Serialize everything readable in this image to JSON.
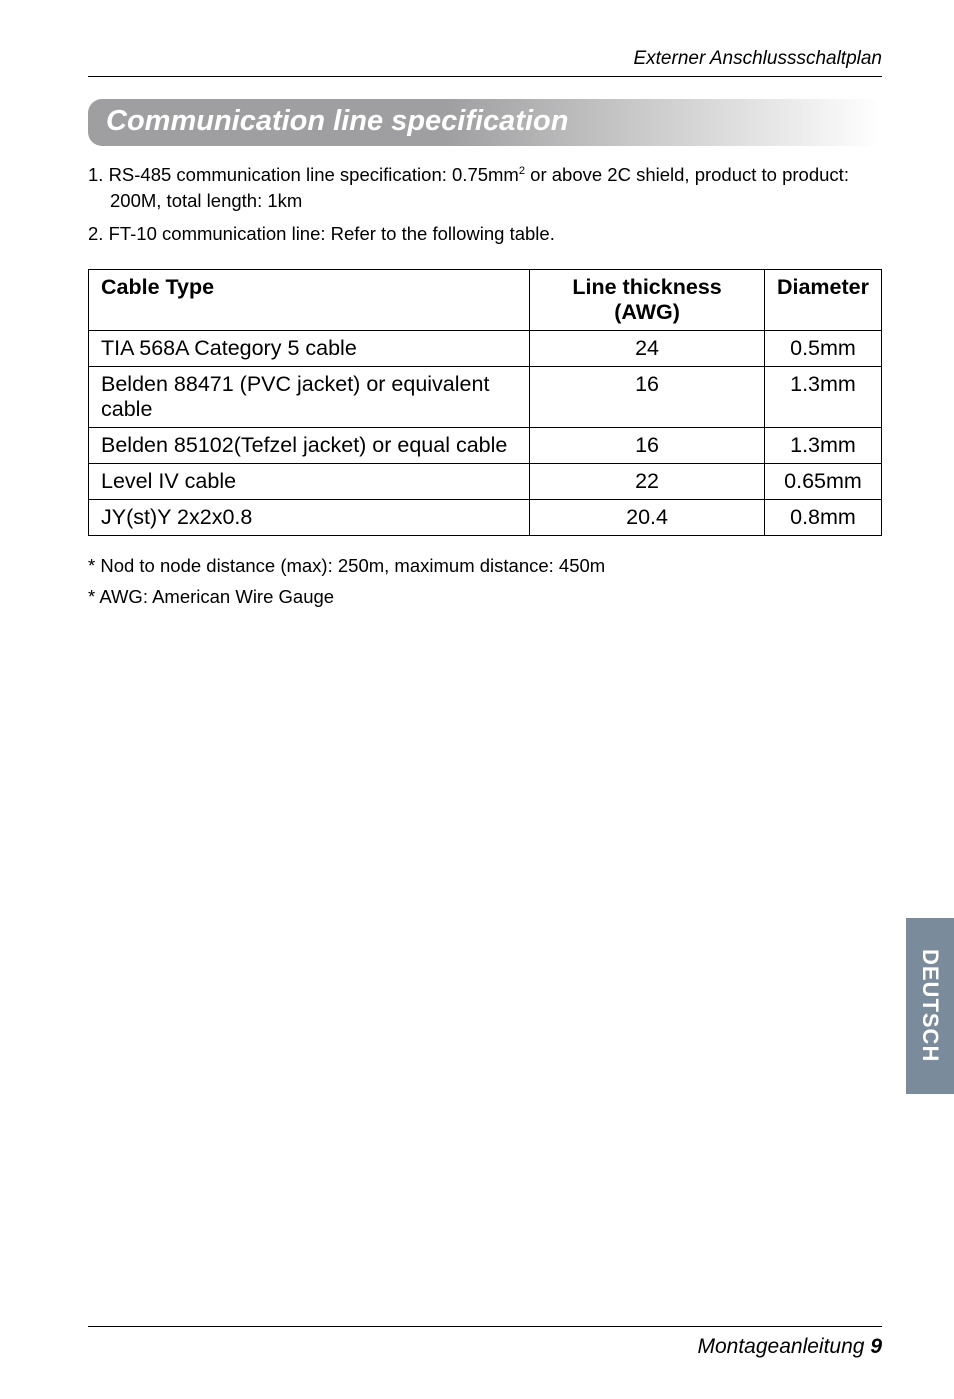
{
  "header": {
    "running_title": "Externer Anschlussschaltplan"
  },
  "section": {
    "title": "Communication line specification"
  },
  "specs": {
    "item1_prefix": "1. RS-485 communication line specification: 0.75mm",
    "item1_sup": "2",
    "item1_suffix": " or above 2C shield, product to product: 200M, total length: 1km",
    "item2": "2. FT-10 communication line: Refer to the following table."
  },
  "table": {
    "headers": {
      "c1": "Cable Type",
      "c2": "Line thickness (AWG)",
      "c3": "Diameter"
    },
    "rows": [
      {
        "c1": "TIA 568A Category 5 cable",
        "c2": "24",
        "c3": "0.5mm"
      },
      {
        "c1": "Belden 88471 (PVC jacket) or equivalent cable",
        "c2": "16",
        "c3": "1.3mm"
      },
      {
        "c1": "Belden 85102(Tefzel jacket) or equal cable",
        "c2": "16",
        "c3": "1.3mm"
      },
      {
        "c1": "Level IV cable",
        "c2": "22",
        "c3": "0.65mm"
      },
      {
        "c1": "JY(st)Y 2x2x0.8",
        "c2": "20.4",
        "c3": "0.8mm"
      }
    ]
  },
  "footnotes": {
    "n1": "* Nod to node distance (max): 250m, maximum distance: 450m",
    "n2": "* AWG: American Wire Gauge"
  },
  "sidetab": {
    "label": "DEUTSCH"
  },
  "footer": {
    "text": "Montageanleitung",
    "page": "9"
  },
  "colors": {
    "sidetab_bg": "#7a8b9b",
    "header_grad_start": "#9f9ea0",
    "rule": "#000000"
  }
}
